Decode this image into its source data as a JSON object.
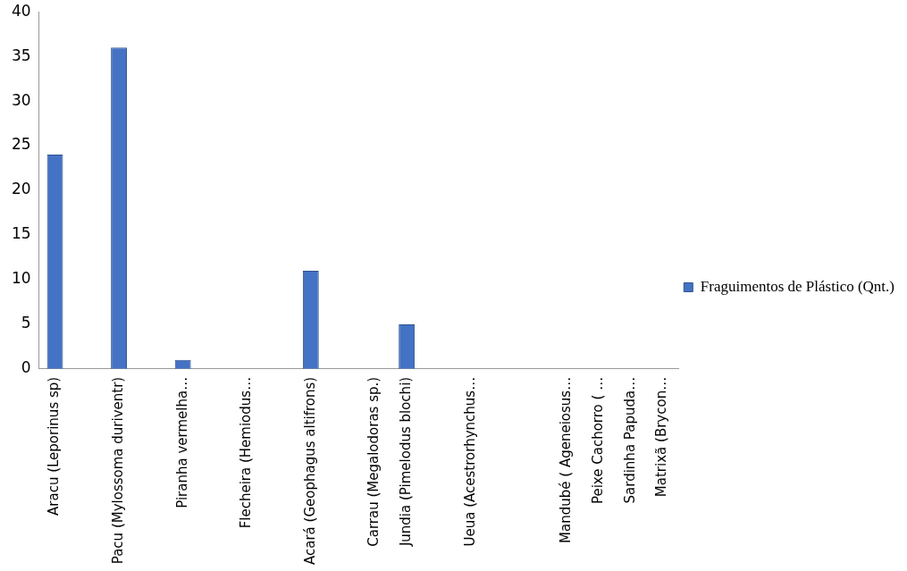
{
  "chart_data": {
    "type": "bar",
    "categories": [
      "Aracu (Leporinus sp)",
      null,
      "Pacu (Mylossoma duriventr)",
      null,
      "Piranha vermelha…",
      null,
      "Flecheira (Hemiodus…",
      null,
      "Acará (Geophagus altifrons)",
      null,
      "Carrau (Megalodoras sp.)",
      "Jundia (Pimelodus blochi)",
      null,
      "Ueua (Acestrorhynchus…",
      null,
      null,
      "Mandubé ( Ageneiosus…",
      "Peixe Cachorro ( …",
      "Sardinha Papuda…",
      "Matrixã (Brycon…"
    ],
    "series": [
      {
        "name": "Fraguimentos de Plástico (Qnt.)",
        "color": "#4472c4",
        "values": [
          24,
          null,
          36,
          null,
          1,
          null,
          0,
          null,
          11,
          null,
          0,
          5,
          null,
          0,
          null,
          null,
          0,
          0,
          0,
          0
        ]
      }
    ],
    "ylim": [
      0,
      40
    ],
    "yticks": [
      0,
      5,
      10,
      15,
      20,
      25,
      30,
      35,
      40
    ],
    "grid": false,
    "legend": "right"
  }
}
